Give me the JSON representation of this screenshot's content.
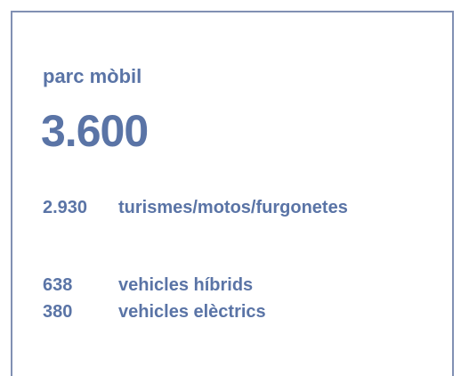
{
  "title": "parc mòbil",
  "total": "3.600",
  "items": [
    {
      "value": "2.930",
      "label": "turismes/motos/furgonetes"
    },
    {
      "value": "638",
      "label": "vehicles híbrids"
    },
    {
      "value": "380",
      "label": "vehicles elèctrics"
    }
  ]
}
